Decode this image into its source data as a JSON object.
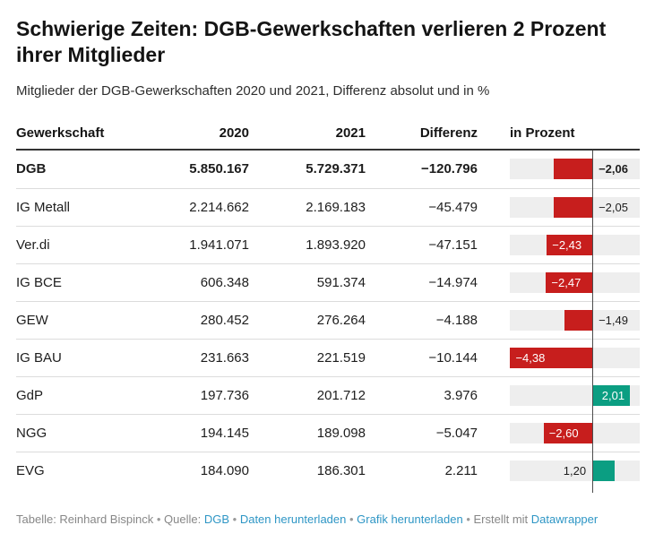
{
  "header": {
    "title": "Schwierige Zeiten: DGB-Gewerkschaften verlieren 2 Prozent ihrer Mitglieder",
    "subtitle": "Mitglieder der DGB-Gewerkschaften 2020 und 2021, Differenz absolut und in %"
  },
  "chart_data": {
    "type": "table",
    "columns": [
      "Gewerkschaft",
      "2020",
      "2021",
      "Differenz",
      "in Prozent"
    ],
    "rows": [
      {
        "name": "DGB",
        "v2020": "5.850.167",
        "v2021": "5.729.371",
        "diff": "−120.796",
        "n2020": 5850167,
        "n2021": 5729371,
        "ndiff": -120796,
        "pct": -2.06,
        "pct_label": "−2,06",
        "bold": true
      },
      {
        "name": "IG Metall",
        "v2020": "2.214.662",
        "v2021": "2.169.183",
        "diff": "−45.479",
        "n2020": 2214662,
        "n2021": 2169183,
        "ndiff": -45479,
        "pct": -2.05,
        "pct_label": "−2,05"
      },
      {
        "name": "Ver.di",
        "v2020": "1.941.071",
        "v2021": "1.893.920",
        "diff": "−47.151",
        "n2020": 1941071,
        "n2021": 1893920,
        "ndiff": -47151,
        "pct": -2.43,
        "pct_label": "−2,43"
      },
      {
        "name": "IG BCE",
        "v2020": "606.348",
        "v2021": "591.374",
        "diff": "−14.974",
        "n2020": 606348,
        "n2021": 591374,
        "ndiff": -14974,
        "pct": -2.47,
        "pct_label": "−2,47"
      },
      {
        "name": "GEW",
        "v2020": "280.452",
        "v2021": "276.264",
        "diff": "−4.188",
        "n2020": 280452,
        "n2021": 276264,
        "ndiff": -4188,
        "pct": -1.49,
        "pct_label": "−1,49"
      },
      {
        "name": "IG BAU",
        "v2020": "231.663",
        "v2021": "221.519",
        "diff": "−10.144",
        "n2020": 231663,
        "n2021": 221519,
        "ndiff": -10144,
        "pct": -4.38,
        "pct_label": "−4,38"
      },
      {
        "name": "GdP",
        "v2020": "197.736",
        "v2021": "201.712",
        "diff": "3.976",
        "n2020": 197736,
        "n2021": 201712,
        "ndiff": 3976,
        "pct": 2.01,
        "pct_label": "2,01"
      },
      {
        "name": "NGG",
        "v2020": "194.145",
        "v2021": "189.098",
        "diff": "−5.047",
        "n2020": 194145,
        "n2021": 189098,
        "ndiff": -5047,
        "pct": -2.6,
        "pct_label": "−2,60"
      },
      {
        "name": "EVG",
        "v2020": "184.090",
        "v2021": "186.301",
        "diff": "2.211",
        "n2020": 184090,
        "n2021": 186301,
        "ndiff": 2211,
        "pct": 1.2,
        "pct_label": "1,20"
      }
    ],
    "bar_axis": {
      "min": -4.4,
      "max": 2.53,
      "zero_line": true
    },
    "colors": {
      "negative": "#c71e1d",
      "positive": "#0b9e82",
      "bar_background": "#eeeeee"
    }
  },
  "footer": {
    "parts": [
      {
        "text": "Tabelle: Reinhard Bispinck",
        "type": "text",
        "id": "credit"
      },
      {
        "text": "•",
        "type": "sep",
        "id": "sep-1"
      },
      {
        "text": "Quelle:",
        "type": "text",
        "id": "source-label"
      },
      {
        "text": "DGB",
        "type": "link",
        "id": "source-link"
      },
      {
        "text": "•",
        "type": "sep",
        "id": "sep-2"
      },
      {
        "text": "Daten herunterladen",
        "type": "link",
        "id": "download-data-link"
      },
      {
        "text": "•",
        "type": "sep",
        "id": "sep-3"
      },
      {
        "text": "Grafik herunterladen",
        "type": "link",
        "id": "download-image-link"
      },
      {
        "text": "•",
        "type": "sep",
        "id": "sep-4"
      },
      {
        "text": "Erstellt mit",
        "type": "text",
        "id": "created-with-label"
      },
      {
        "text": "Datawrapper",
        "type": "link",
        "id": "datawrapper-link"
      }
    ]
  }
}
